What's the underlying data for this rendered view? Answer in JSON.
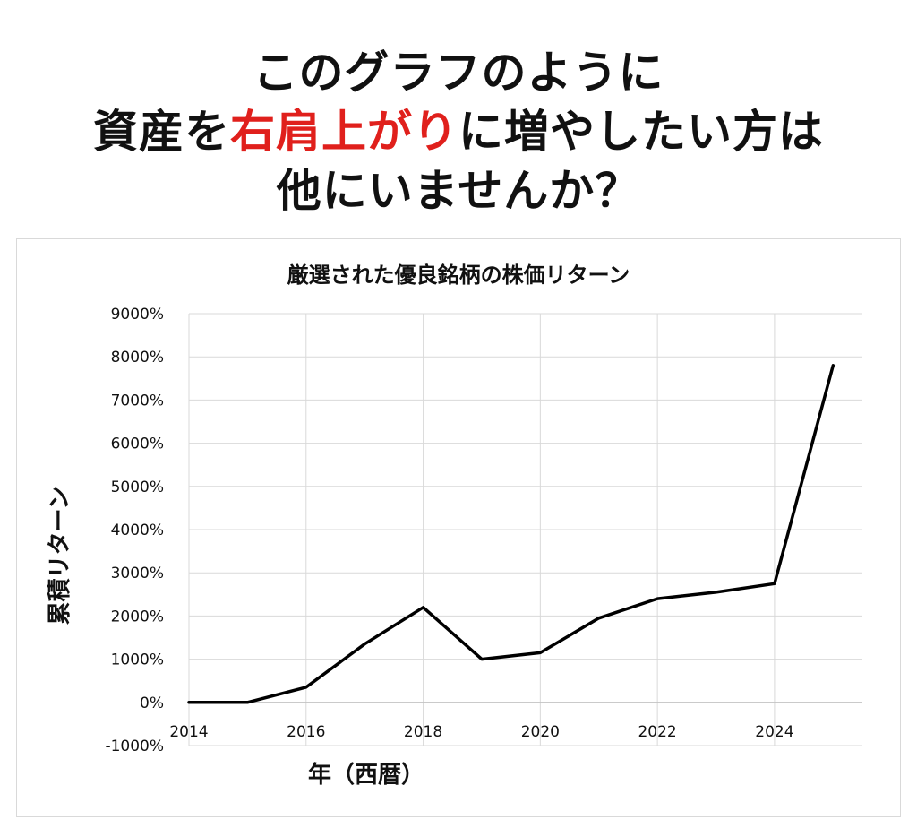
{
  "headline": {
    "line1": "このグラフのように",
    "line2_before": "資産を",
    "line2_accent": "右肩上がり",
    "line2_after": "に増やしたい方は",
    "line3": "他にいませんか？",
    "accent_color": "#e0201c"
  },
  "chart_data": {
    "type": "line",
    "title": "厳選された優良銘柄の株価リターン",
    "xlabel": "年（西暦）",
    "ylabel": "累積リターン",
    "x": [
      2014,
      2015,
      2016,
      2017,
      2018,
      2019,
      2020,
      2021,
      2022,
      2023,
      2024,
      2025
    ],
    "series": [
      {
        "values": [
          0,
          0,
          350,
          1350,
          2200,
          1000,
          1150,
          1950,
          2400,
          2550,
          2750,
          7800
        ],
        "color": "#000000"
      }
    ],
    "xlim": [
      2014,
      2025.5
    ],
    "ylim": [
      -1000,
      9000
    ],
    "x_ticks": [
      "2014",
      "2016",
      "2018",
      "2020",
      "2022",
      "2024"
    ],
    "y_ticks": [
      "-1000%",
      "0%",
      "1000%",
      "2000%",
      "3000%",
      "4000%",
      "5000%",
      "6000%",
      "7000%",
      "8000%",
      "9000%"
    ],
    "grid": true,
    "legend": "none"
  }
}
